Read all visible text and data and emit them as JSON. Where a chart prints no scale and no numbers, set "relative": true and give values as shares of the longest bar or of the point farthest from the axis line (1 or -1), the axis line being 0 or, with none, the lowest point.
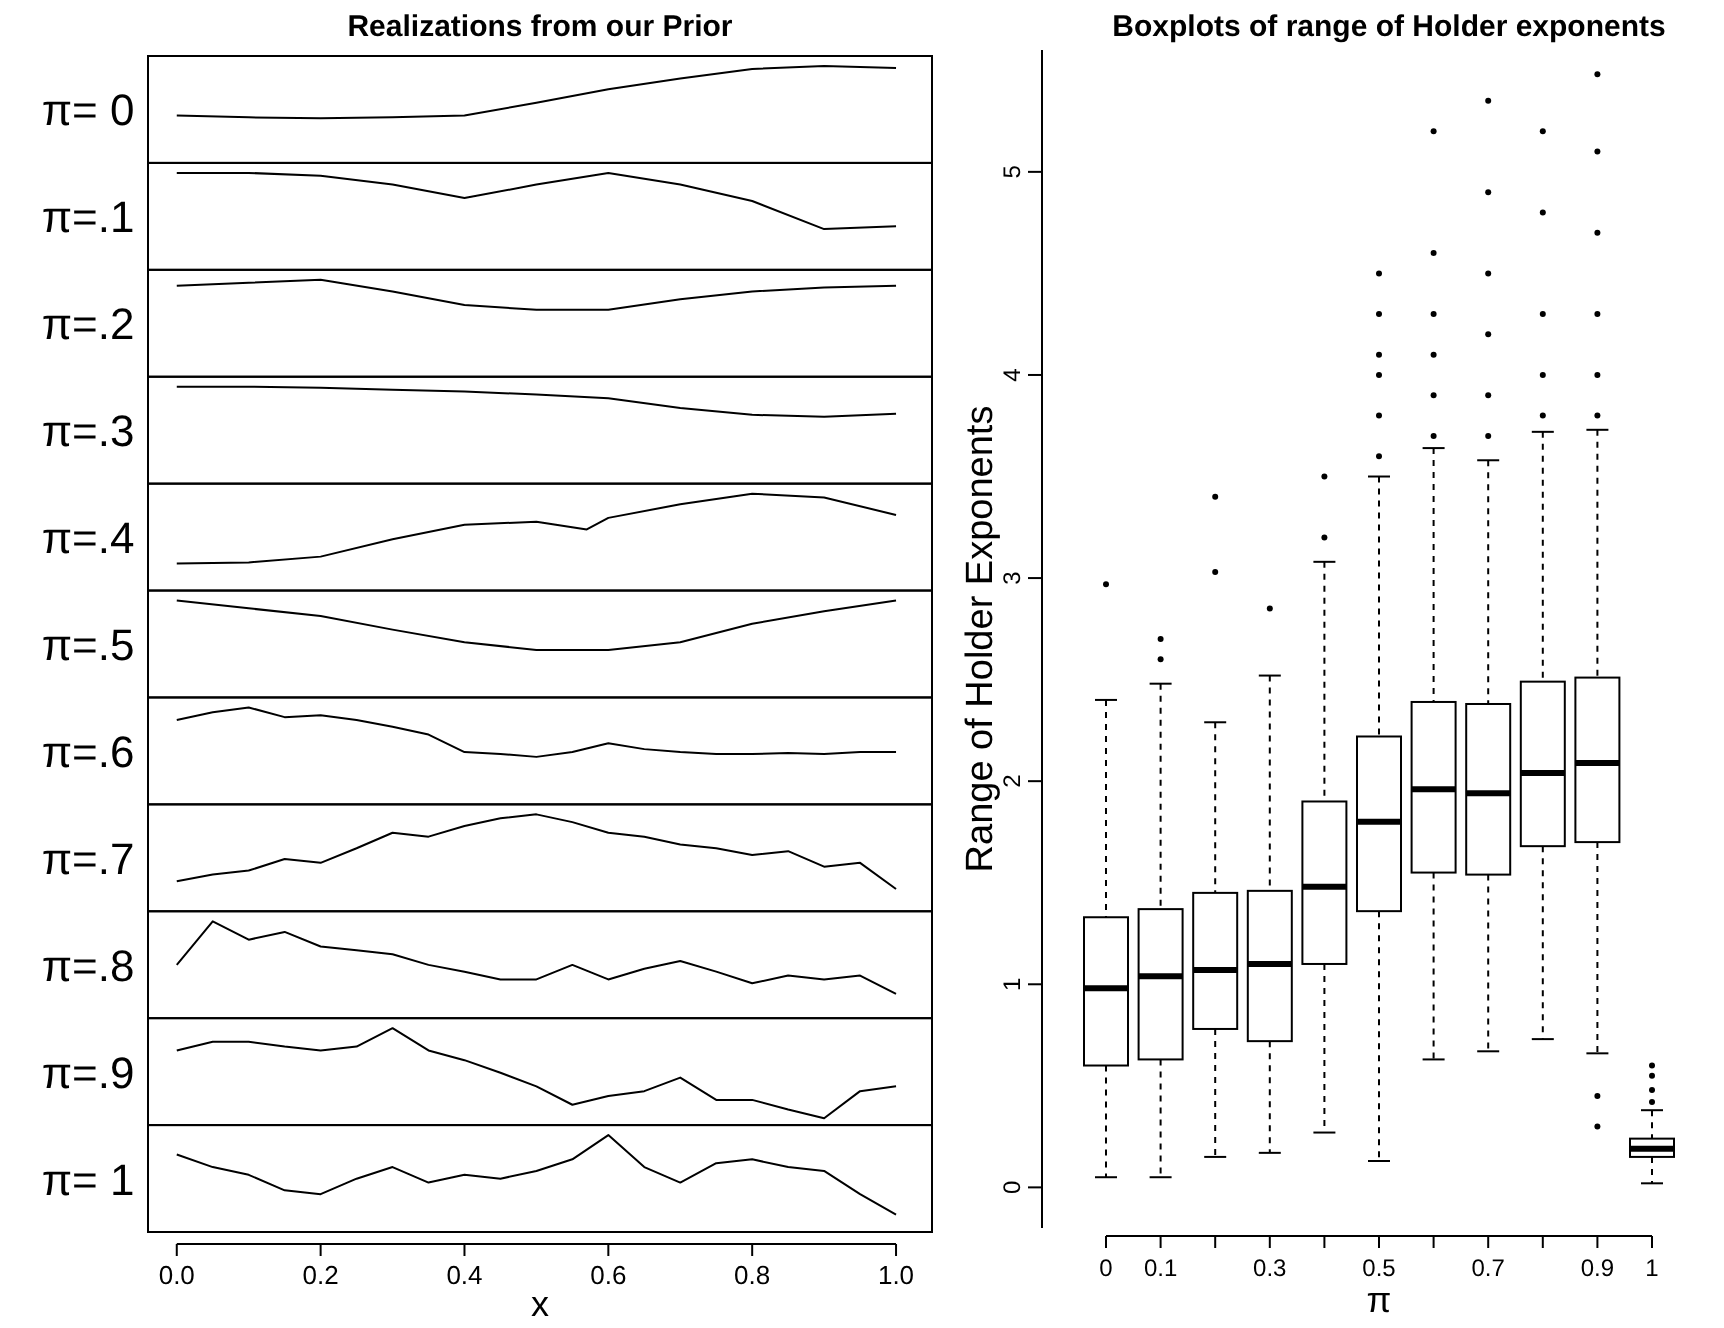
{
  "chart_data": [
    {
      "type": "line",
      "title": "Realizations from our Prior",
      "ylabel": "π= 0",
      "relative": true,
      "xlim": [
        -0.04,
        1.05
      ],
      "tick_labels": false,
      "color": "#000000",
      "x": [
        0,
        0.1,
        0.2,
        0.3,
        0.4,
        0.5,
        0.6,
        0.7,
        0.8,
        0.9,
        1
      ],
      "values": [
        0.49,
        0.47,
        0.46,
        0.47,
        0.49,
        0.62,
        0.76,
        0.87,
        0.97,
        1,
        0.98
      ]
    },
    {
      "type": "line",
      "ylabel": "π=.1",
      "relative": true,
      "xlim": [
        -0.04,
        1.05
      ],
      "tick_labels": false,
      "color": "#000000",
      "x": [
        0,
        0.1,
        0.2,
        0.3,
        0.4,
        0.5,
        0.6,
        0.7,
        0.8,
        0.9,
        1
      ],
      "values": [
        1,
        1,
        0.97,
        0.88,
        0.74,
        0.88,
        1,
        0.88,
        0.71,
        0.42,
        0.45
      ]
    },
    {
      "type": "line",
      "ylabel": "π=.2",
      "relative": true,
      "xlim": [
        -0.04,
        1.05
      ],
      "tick_labels": false,
      "color": "#000000",
      "x": [
        0,
        0.1,
        0.2,
        0.3,
        0.4,
        0.5,
        0.6,
        0.7,
        0.8,
        0.9,
        1
      ],
      "values": [
        0.94,
        0.97,
        1,
        0.88,
        0.74,
        0.69,
        0.69,
        0.8,
        0.88,
        0.92,
        0.94
      ]
    },
    {
      "type": "line",
      "ylabel": "π=.3",
      "relative": true,
      "xlim": [
        -0.04,
        1.05
      ],
      "tick_labels": false,
      "color": "#000000",
      "x": [
        0,
        0.1,
        0.2,
        0.3,
        0.4,
        0.5,
        0.6,
        0.7,
        0.8,
        0.9,
        1
      ],
      "values": [
        1,
        1,
        0.99,
        0.97,
        0.95,
        0.92,
        0.88,
        0.78,
        0.71,
        0.69,
        0.72
      ]
    },
    {
      "type": "line",
      "ylabel": "π=.4",
      "relative": true,
      "xlim": [
        -0.04,
        1.05
      ],
      "tick_labels": false,
      "color": "#000000",
      "x": [
        0,
        0.1,
        0.2,
        0.3,
        0.4,
        0.5,
        0.57,
        0.6,
        0.7,
        0.8,
        0.9,
        1
      ],
      "values": [
        0.28,
        0.29,
        0.35,
        0.53,
        0.68,
        0.71,
        0.63,
        0.75,
        0.89,
        1,
        0.96,
        0.78
      ]
    },
    {
      "type": "line",
      "ylabel": "π=.5",
      "relative": true,
      "xlim": [
        -0.04,
        1.05
      ],
      "tick_labels": false,
      "color": "#000000",
      "x": [
        0,
        0.1,
        0.2,
        0.3,
        0.4,
        0.5,
        0.6,
        0.7,
        0.8,
        0.9,
        1
      ],
      "values": [
        1,
        0.92,
        0.84,
        0.7,
        0.57,
        0.49,
        0.49,
        0.57,
        0.76,
        0.89,
        1
      ]
    },
    {
      "type": "line",
      "ylabel": "π=.6",
      "relative": true,
      "xlim": [
        -0.04,
        1.05
      ],
      "tick_labels": false,
      "color": "#000000",
      "x": [
        0,
        0.05,
        0.1,
        0.15,
        0.2,
        0.25,
        0.3,
        0.35,
        0.4,
        0.45,
        0.5,
        0.55,
        0.6,
        0.65,
        0.7,
        0.75,
        0.8,
        0.85,
        0.9,
        0.95,
        1
      ],
      "values": [
        0.87,
        0.95,
        1,
        0.9,
        0.92,
        0.87,
        0.8,
        0.72,
        0.54,
        0.52,
        0.49,
        0.54,
        0.63,
        0.57,
        0.54,
        0.52,
        0.52,
        0.53,
        0.52,
        0.54,
        0.54
      ]
    },
    {
      "type": "line",
      "ylabel": "π=.7",
      "relative": true,
      "xlim": [
        -0.04,
        1.05
      ],
      "tick_labels": false,
      "color": "#000000",
      "x": [
        0,
        0.05,
        0.1,
        0.15,
        0.2,
        0.25,
        0.3,
        0.35,
        0.4,
        0.45,
        0.5,
        0.55,
        0.6,
        0.65,
        0.7,
        0.75,
        0.8,
        0.85,
        0.9,
        0.95,
        1
      ],
      "values": [
        0.31,
        0.38,
        0.42,
        0.54,
        0.5,
        0.65,
        0.81,
        0.77,
        0.88,
        0.96,
        1,
        0.92,
        0.81,
        0.77,
        0.69,
        0.65,
        0.58,
        0.62,
        0.46,
        0.5,
        0.23
      ]
    },
    {
      "type": "line",
      "ylabel": "π=.8",
      "relative": true,
      "xlim": [
        -0.04,
        1.05
      ],
      "tick_labels": false,
      "color": "#000000",
      "x": [
        0,
        0.05,
        0.1,
        0.15,
        0.2,
        0.25,
        0.3,
        0.35,
        0.4,
        0.45,
        0.5,
        0.55,
        0.6,
        0.65,
        0.7,
        0.75,
        0.8,
        0.85,
        0.9,
        0.95,
        1
      ],
      "values": [
        0.55,
        1,
        0.81,
        0.89,
        0.74,
        0.7,
        0.66,
        0.55,
        0.48,
        0.4,
        0.4,
        0.55,
        0.4,
        0.51,
        0.59,
        0.48,
        0.36,
        0.44,
        0.4,
        0.44,
        0.25
      ]
    },
    {
      "type": "line",
      "ylabel": "π=.9",
      "relative": true,
      "xlim": [
        -0.04,
        1.05
      ],
      "tick_labels": false,
      "color": "#000000",
      "x": [
        0,
        0.05,
        0.1,
        0.15,
        0.2,
        0.25,
        0.3,
        0.35,
        0.4,
        0.45,
        0.5,
        0.55,
        0.6,
        0.65,
        0.7,
        0.75,
        0.8,
        0.85,
        0.9,
        0.95,
        1
      ],
      "values": [
        0.77,
        0.86,
        0.86,
        0.81,
        0.77,
        0.81,
        1,
        0.77,
        0.67,
        0.54,
        0.4,
        0.21,
        0.3,
        0.35,
        0.49,
        0.26,
        0.26,
        0.16,
        0.07,
        0.35,
        0.4
      ]
    },
    {
      "type": "line",
      "ylabel": "π= 1",
      "xlabel": "x",
      "relative": true,
      "xlim": [
        -0.04,
        1.05
      ],
      "xticks": [
        {
          "value": 0,
          "label": "0.0"
        },
        {
          "value": 0.2,
          "label": "0.2"
        },
        {
          "value": 0.4,
          "label": "0.4"
        },
        {
          "value": 0.6,
          "label": "0.6"
        },
        {
          "value": 0.8,
          "label": "0.8"
        },
        {
          "value": 1,
          "label": "1.0"
        }
      ],
      "tick_labels": "x",
      "color": "#000000",
      "x": [
        0,
        0.05,
        0.1,
        0.15,
        0.2,
        0.25,
        0.3,
        0.35,
        0.4,
        0.45,
        0.5,
        0.55,
        0.6,
        0.65,
        0.7,
        0.75,
        0.8,
        0.85,
        0.9,
        0.95,
        1
      ],
      "values": [
        0.8,
        0.67,
        0.59,
        0.43,
        0.39,
        0.55,
        0.67,
        0.51,
        0.59,
        0.55,
        0.63,
        0.75,
        1,
        0.67,
        0.51,
        0.71,
        0.75,
        0.67,
        0.63,
        0.39,
        0.18
      ]
    },
    {
      "type": "box",
      "title": "Boxplots of range of Holder exponents",
      "xlabel": "π",
      "ylabel": "Range of Holder Exponents",
      "categories": [
        "0",
        "0.1",
        null,
        "0.3",
        null,
        "0.5",
        null,
        "0.7",
        null,
        "0.9",
        "1"
      ],
      "ylim": [
        -0.2,
        5.6
      ],
      "yticks": [
        0,
        1,
        2,
        3,
        4,
        5
      ],
      "color": "#000000",
      "boxes": [
        {
          "low": 0.05,
          "q1": 0.6,
          "median": 0.98,
          "q3": 1.33,
          "high": 2.4,
          "outliers": [
            2.97
          ]
        },
        {
          "low": 0.05,
          "q1": 0.63,
          "median": 1.04,
          "q3": 1.37,
          "high": 2.48,
          "outliers": [
            2.6,
            2.7
          ]
        },
        {
          "low": 0.15,
          "q1": 0.78,
          "median": 1.07,
          "q3": 1.45,
          "high": 2.29,
          "outliers": [
            3.03,
            3.4
          ]
        },
        {
          "low": 0.17,
          "q1": 0.72,
          "median": 1.1,
          "q3": 1.46,
          "high": 2.52,
          "outliers": [
            2.85
          ]
        },
        {
          "low": 0.27,
          "q1": 1.1,
          "median": 1.48,
          "q3": 1.9,
          "high": 3.08,
          "outliers": [
            3.2,
            3.5
          ]
        },
        {
          "low": 0.13,
          "q1": 1.36,
          "median": 1.8,
          "q3": 2.22,
          "high": 3.5,
          "outliers": [
            3.6,
            3.8,
            4,
            4.1,
            4.3,
            4.5
          ]
        },
        {
          "low": 0.63,
          "q1": 1.55,
          "median": 1.96,
          "q3": 2.39,
          "high": 3.64,
          "outliers": [
            3.7,
            3.9,
            4.1,
            4.3,
            4.6,
            5.2
          ]
        },
        {
          "low": 0.67,
          "q1": 1.54,
          "median": 1.94,
          "q3": 2.38,
          "high": 3.58,
          "outliers": [
            3.7,
            3.9,
            4.2,
            4.5,
            4.9,
            5.35
          ]
        },
        {
          "low": 0.73,
          "q1": 1.68,
          "median": 2.04,
          "q3": 2.49,
          "high": 3.72,
          "outliers": [
            3.8,
            4,
            4.3,
            4.8,
            5.2
          ]
        },
        {
          "low": 0.66,
          "q1": 1.7,
          "median": 2.09,
          "q3": 2.51,
          "high": 3.73,
          "outliers": [
            0.3,
            0.45,
            3.8,
            4,
            4.3,
            4.7,
            5.1,
            5.48
          ]
        },
        {
          "low": 0.02,
          "q1": 0.15,
          "median": 0.19,
          "q3": 0.24,
          "high": 0.38,
          "outliers": [
            0.42,
            0.48,
            0.55,
            0.6
          ]
        }
      ]
    }
  ]
}
